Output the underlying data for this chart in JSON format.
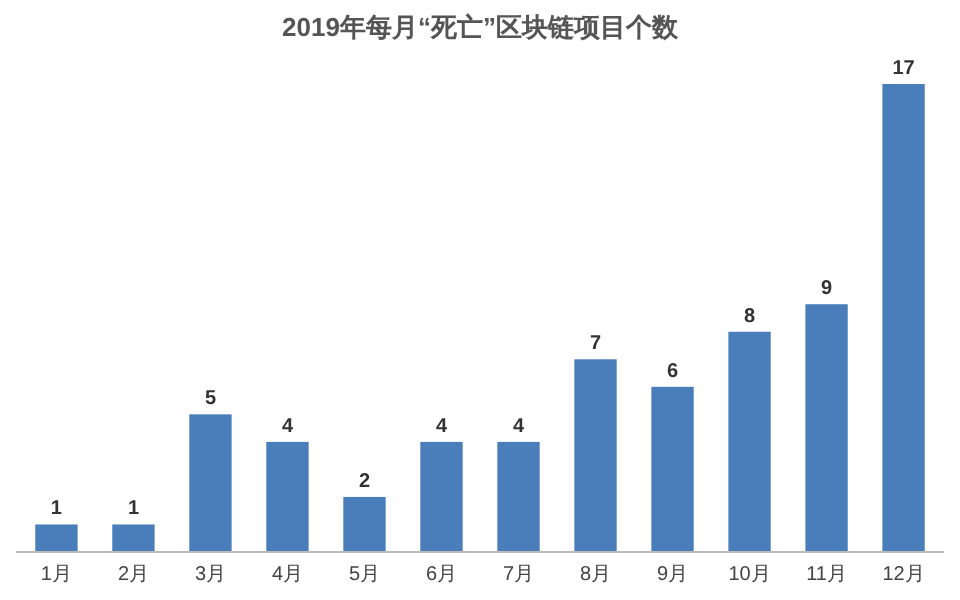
{
  "chart_data": {
    "type": "bar",
    "title": "2019年每月“死亡”区块链项目个数",
    "categories": [
      "1月",
      "2月",
      "3月",
      "4月",
      "5月",
      "6月",
      "7月",
      "8月",
      "9月",
      "10月",
      "11月",
      "12月"
    ],
    "values": [
      1,
      1,
      5,
      4,
      2,
      4,
      4,
      7,
      6,
      8,
      9,
      17
    ],
    "color": "#4a7ebb",
    "data_labels": true,
    "tick_labels": "x"
  }
}
